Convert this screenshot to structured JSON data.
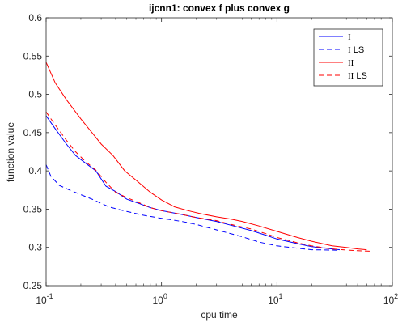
{
  "chart_data": {
    "type": "line",
    "title": "ijcnn1: convex f plus convex g",
    "xlabel": "cpu time",
    "ylabel": "function value",
    "xscale": "log",
    "xlim": [
      0.1,
      100
    ],
    "ylim": [
      0.25,
      0.6
    ],
    "yticks": [
      "0.25",
      "0.3",
      "0.35",
      "0.4",
      "0.45",
      "0.5",
      "0.55",
      "0.6"
    ],
    "xticks": [
      {
        "base": "10",
        "exp": "-1"
      },
      {
        "base": "10",
        "exp": "0"
      },
      {
        "base": "10",
        "exp": "1"
      },
      {
        "base": "10",
        "exp": "2"
      }
    ],
    "grid": false,
    "legend_position": "top-right",
    "series": [
      {
        "name": "I",
        "color": "#0000ff",
        "dash": "solid",
        "x": [
          0.1,
          0.12,
          0.15,
          0.18,
          0.22,
          0.27,
          0.33,
          0.4,
          0.5,
          0.65,
          0.8,
          1.0,
          1.5,
          2,
          3,
          4,
          6,
          8,
          10,
          15,
          20,
          30,
          35
        ],
        "y": [
          0.472,
          0.455,
          0.435,
          0.42,
          0.41,
          0.4,
          0.38,
          0.373,
          0.363,
          0.357,
          0.352,
          0.348,
          0.343,
          0.339,
          0.334,
          0.329,
          0.322,
          0.316,
          0.311,
          0.305,
          0.301,
          0.298,
          0.297
        ]
      },
      {
        "name": "I LS",
        "color": "#0000ff",
        "dash": "dashed",
        "x": [
          0.1,
          0.11,
          0.13,
          0.16,
          0.2,
          0.25,
          0.35,
          0.5,
          0.7,
          1.0,
          1.5,
          2,
          3,
          5,
          7,
          10,
          15,
          20,
          30,
          35
        ],
        "y": [
          0.408,
          0.393,
          0.381,
          0.375,
          0.369,
          0.363,
          0.353,
          0.347,
          0.342,
          0.338,
          0.334,
          0.33,
          0.323,
          0.314,
          0.307,
          0.302,
          0.299,
          0.297,
          0.2965,
          0.2962
        ]
      },
      {
        "name": "II",
        "color": "#ff0000",
        "dash": "solid",
        "x": [
          0.1,
          0.12,
          0.15,
          0.2,
          0.25,
          0.3,
          0.38,
          0.48,
          0.6,
          0.8,
          1.0,
          1.3,
          1.7,
          2.2,
          3,
          4,
          5,
          7,
          10,
          15,
          20,
          30,
          40,
          50,
          60
        ],
        "y": [
          0.542,
          0.515,
          0.493,
          0.468,
          0.45,
          0.435,
          0.42,
          0.4,
          0.388,
          0.372,
          0.362,
          0.353,
          0.348,
          0.344,
          0.34,
          0.337,
          0.334,
          0.328,
          0.321,
          0.313,
          0.308,
          0.302,
          0.3,
          0.298,
          0.297
        ]
      },
      {
        "name": "II LS",
        "color": "#ff0000",
        "dash": "dashed",
        "x": [
          0.1,
          0.12,
          0.15,
          0.18,
          0.22,
          0.27,
          0.33,
          0.4,
          0.5,
          0.65,
          0.8,
          1.0,
          1.5,
          2,
          3,
          4,
          6,
          8,
          10,
          15,
          20,
          30,
          40,
          50,
          65
        ],
        "y": [
          0.477,
          0.46,
          0.44,
          0.425,
          0.412,
          0.401,
          0.385,
          0.372,
          0.365,
          0.358,
          0.352,
          0.348,
          0.343,
          0.339,
          0.335,
          0.33,
          0.324,
          0.318,
          0.313,
          0.306,
          0.302,
          0.298,
          0.2965,
          0.2957,
          0.295
        ]
      }
    ]
  }
}
